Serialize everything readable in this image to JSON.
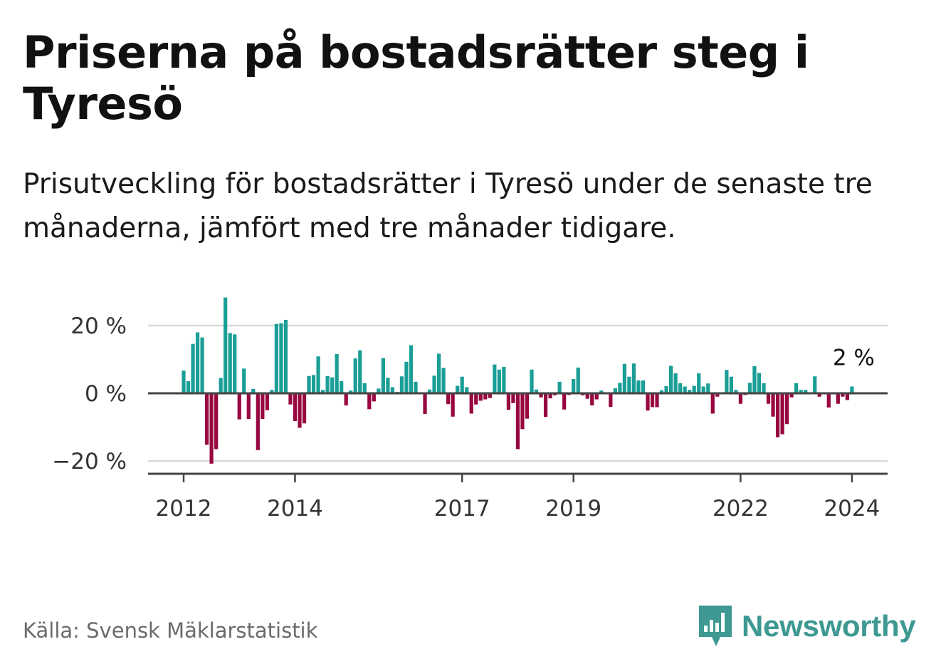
{
  "title": "Priserna på bostadsrätter steg i Tyresö",
  "subtitle": "Prisutveckling för bostadsrätter i Tyresö under de senaste tre månaderna, jämfört med tre månader tidigare.",
  "source": "Källa: Svensk Mäklarstatistik",
  "brand": "Newsworthy",
  "colors": {
    "positive": "#1a9e96",
    "negative": "#98073f",
    "grid": "#d9d9d9",
    "axis": "#444444",
    "brand": "#3d9991"
  },
  "chart_data": {
    "type": "bar",
    "title": "Priserna på bostadsrätter steg i Tyresö",
    "xlabel": "",
    "ylabel": "",
    "ylim": [
      -24,
      29
    ],
    "y_ticks": [
      {
        "value": 20,
        "label": "20 %"
      },
      {
        "value": 0,
        "label": "0 %"
      },
      {
        "value": -20,
        "label": "−20 %"
      }
    ],
    "x_ticks": [
      {
        "value": 2012,
        "label": "2012"
      },
      {
        "value": 2014,
        "label": "2014"
      },
      {
        "value": 2017,
        "label": "2017"
      },
      {
        "value": 2019,
        "label": "2019"
      },
      {
        "value": 2022,
        "label": "2022"
      },
      {
        "value": 2024,
        "label": "2024"
      }
    ],
    "series_start_year": 2012,
    "series_frequency": "monthly",
    "end_label": "2 %",
    "values": [
      6.7,
      3.6,
      14.6,
      18.0,
      16.5,
      -15.2,
      -20.8,
      -16.5,
      4.5,
      28.3,
      17.8,
      17.4,
      -7.7,
      7.3,
      -7.6,
      1.3,
      -16.8,
      -7.6,
      -5.0,
      1.0,
      20.5,
      20.7,
      21.7,
      -3.3,
      -8.2,
      -10.2,
      -8.9,
      5.1,
      5.4,
      10.9,
      1.0,
      5.1,
      4.7,
      11.6,
      3.6,
      -3.6,
      0.8,
      10.3,
      12.7,
      3.0,
      -4.7,
      -2.4,
      1.4,
      10.4,
      4.6,
      1.8,
      0.4,
      5.0,
      9.3,
      14.2,
      3.4,
      0.3,
      -6.1,
      1.1,
      5.2,
      11.7,
      7.5,
      -3.2,
      -6.9,
      2.2,
      4.9,
      1.8,
      -6.0,
      -3.3,
      -2.2,
      -1.8,
      -1.4,
      8.5,
      7.0,
      7.8,
      -4.9,
      -2.9,
      -16.5,
      -10.6,
      -7.5,
      7.0,
      1.1,
      -1.2,
      -7.0,
      -1.5,
      -0.6,
      3.4,
      -4.8,
      -0.5,
      4.2,
      7.6,
      -0.6,
      -1.6,
      -3.6,
      -1.8,
      0.8,
      -0.3,
      -4.0,
      1.5,
      3.1,
      8.7,
      4.9,
      8.8,
      3.8,
      3.8,
      -5.1,
      -4.1,
      -4.1,
      0.9,
      2.1,
      8.1,
      5.9,
      3.0,
      2.0,
      1.0,
      2.2,
      5.9,
      2.0,
      2.9,
      -6.0,
      -1.0,
      0.2,
      6.9,
      4.9,
      1.0,
      -3.1,
      -0.5,
      3.1,
      8.0,
      6.0,
      3.0,
      -3.1,
      -6.9,
      -13.0,
      -12.1,
      -9.1,
      -1.2,
      3.0,
      1.0,
      1.0,
      0.1,
      5.0,
      -1.0,
      0.1,
      -4.2,
      0.2,
      -3.1,
      -1.0,
      -2.0,
      2.0
    ]
  }
}
